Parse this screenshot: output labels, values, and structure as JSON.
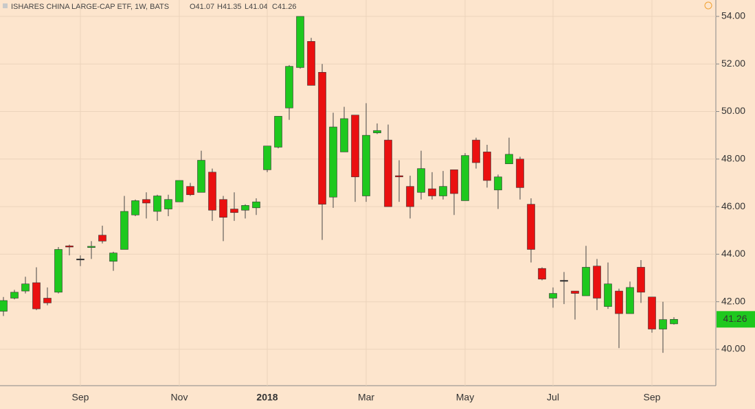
{
  "chart_data": {
    "type": "candlestick",
    "title": "ISHARES CHINA LARGE-CAP ETF, 1W, BATS",
    "ohlc_labels": [
      "O41.07",
      "H41.35",
      "L41.04",
      "C41.26"
    ],
    "categories": [
      null,
      null,
      null,
      null,
      null,
      null,
      null,
      "Sep",
      null,
      null,
      null,
      null,
      null,
      null,
      null,
      null,
      "Nov",
      null,
      null,
      null,
      null,
      null,
      null,
      null,
      "2018",
      null,
      null,
      null,
      null,
      null,
      null,
      null,
      null,
      "Mar",
      null,
      null,
      null,
      null,
      null,
      null,
      null,
      null,
      "May",
      null,
      null,
      null,
      null,
      null,
      null,
      null,
      "Jul",
      null,
      null,
      null,
      null,
      null,
      null,
      null,
      null,
      "Sep",
      null,
      null
    ],
    "open": [
      41.6,
      42.15,
      42.45,
      42.8,
      42.15,
      42.4,
      44.35,
      43.8,
      44.28,
      44.8,
      43.7,
      44.2,
      45.65,
      46.3,
      45.8,
      45.9,
      46.2,
      46.85,
      46.6,
      47.45,
      46.3,
      45.9,
      45.85,
      45.95,
      47.55,
      48.5,
      50.15,
      51.85,
      52.95,
      51.65,
      46.4,
      48.3,
      49.85,
      46.45,
      49.1,
      48.8,
      47.3,
      46.85,
      46.6,
      46.75,
      46.45,
      47.55,
      46.25,
      48.8,
      48.3,
      46.7,
      47.8,
      48.0,
      46.1,
      43.4,
      42.15,
      42.9,
      42.45,
      42.25,
      43.5,
      41.8,
      42.45,
      41.5,
      43.45,
      42.2,
      40.85,
      41.07
    ],
    "high": [
      42.2,
      42.5,
      43.05,
      43.45,
      42.6,
      44.3,
      44.4,
      43.95,
      44.55,
      45.2,
      44.1,
      46.45,
      46.3,
      46.6,
      46.5,
      46.5,
      47.1,
      47.0,
      48.35,
      47.6,
      46.45,
      46.6,
      46.1,
      46.35,
      48.55,
      49.8,
      51.95,
      54.0,
      53.1,
      52.0,
      49.95,
      50.2,
      49.85,
      50.35,
      49.5,
      49.45,
      47.95,
      47.3,
      48.35,
      47.45,
      47.5,
      47.55,
      48.25,
      48.9,
      48.6,
      47.35,
      48.9,
      48.1,
      46.35,
      43.45,
      42.6,
      43.25,
      42.45,
      44.35,
      43.8,
      43.65,
      42.55,
      42.85,
      43.75,
      42.2,
      42.0,
      41.35
    ],
    "low": [
      41.4,
      42.1,
      42.35,
      41.65,
      41.85,
      42.35,
      43.95,
      43.5,
      43.8,
      44.45,
      43.3,
      44.2,
      45.6,
      45.5,
      45.4,
      45.6,
      46.2,
      46.45,
      46.6,
      45.4,
      44.55,
      45.4,
      45.5,
      45.65,
      47.45,
      48.45,
      49.65,
      51.8,
      51.1,
      44.6,
      45.95,
      48.3,
      46.2,
      46.2,
      49.05,
      46.0,
      46.2,
      45.5,
      46.3,
      46.3,
      46.3,
      45.65,
      46.25,
      47.6,
      46.8,
      45.9,
      47.8,
      46.3,
      43.65,
      42.9,
      41.75,
      41.9,
      41.25,
      42.25,
      41.65,
      41.7,
      40.05,
      41.5,
      41.95,
      40.7,
      39.85,
      41.04
    ],
    "close": [
      42.05,
      42.4,
      42.75,
      41.7,
      41.95,
      44.2,
      44.3,
      43.8,
      44.33,
      44.55,
      44.05,
      45.8,
      46.25,
      46.15,
      46.45,
      46.3,
      47.1,
      46.5,
      47.95,
      45.85,
      45.55,
      45.75,
      46.05,
      46.2,
      48.55,
      49.8,
      51.9,
      54.0,
      51.1,
      46.1,
      49.35,
      49.7,
      47.25,
      49.0,
      49.2,
      46.0,
      47.25,
      46.0,
      47.6,
      46.45,
      46.85,
      46.55,
      48.15,
      47.85,
      47.1,
      47.25,
      48.2,
      46.8,
      44.2,
      42.95,
      42.35,
      42.9,
      42.35,
      43.45,
      42.15,
      42.75,
      41.5,
      42.6,
      42.4,
      40.85,
      41.25,
      41.26
    ],
    "up_color": "#1ec81e",
    "down_color": "#ea1010",
    "flat_color": "#333333",
    "ylim": [
      38.47,
      54.69
    ],
    "yticks": [
      {
        "value": 40,
        "label": "40.00"
      },
      {
        "value": 42,
        "label": "42.00"
      },
      {
        "value": 44,
        "label": "44.00"
      },
      {
        "value": 46,
        "label": "46.00"
      },
      {
        "value": 48,
        "label": "48.00"
      },
      {
        "value": 50,
        "label": "50.00"
      },
      {
        "value": 52,
        "label": "52.00"
      },
      {
        "value": 54,
        "label": "54.00"
      }
    ],
    "grid": true
  }
}
